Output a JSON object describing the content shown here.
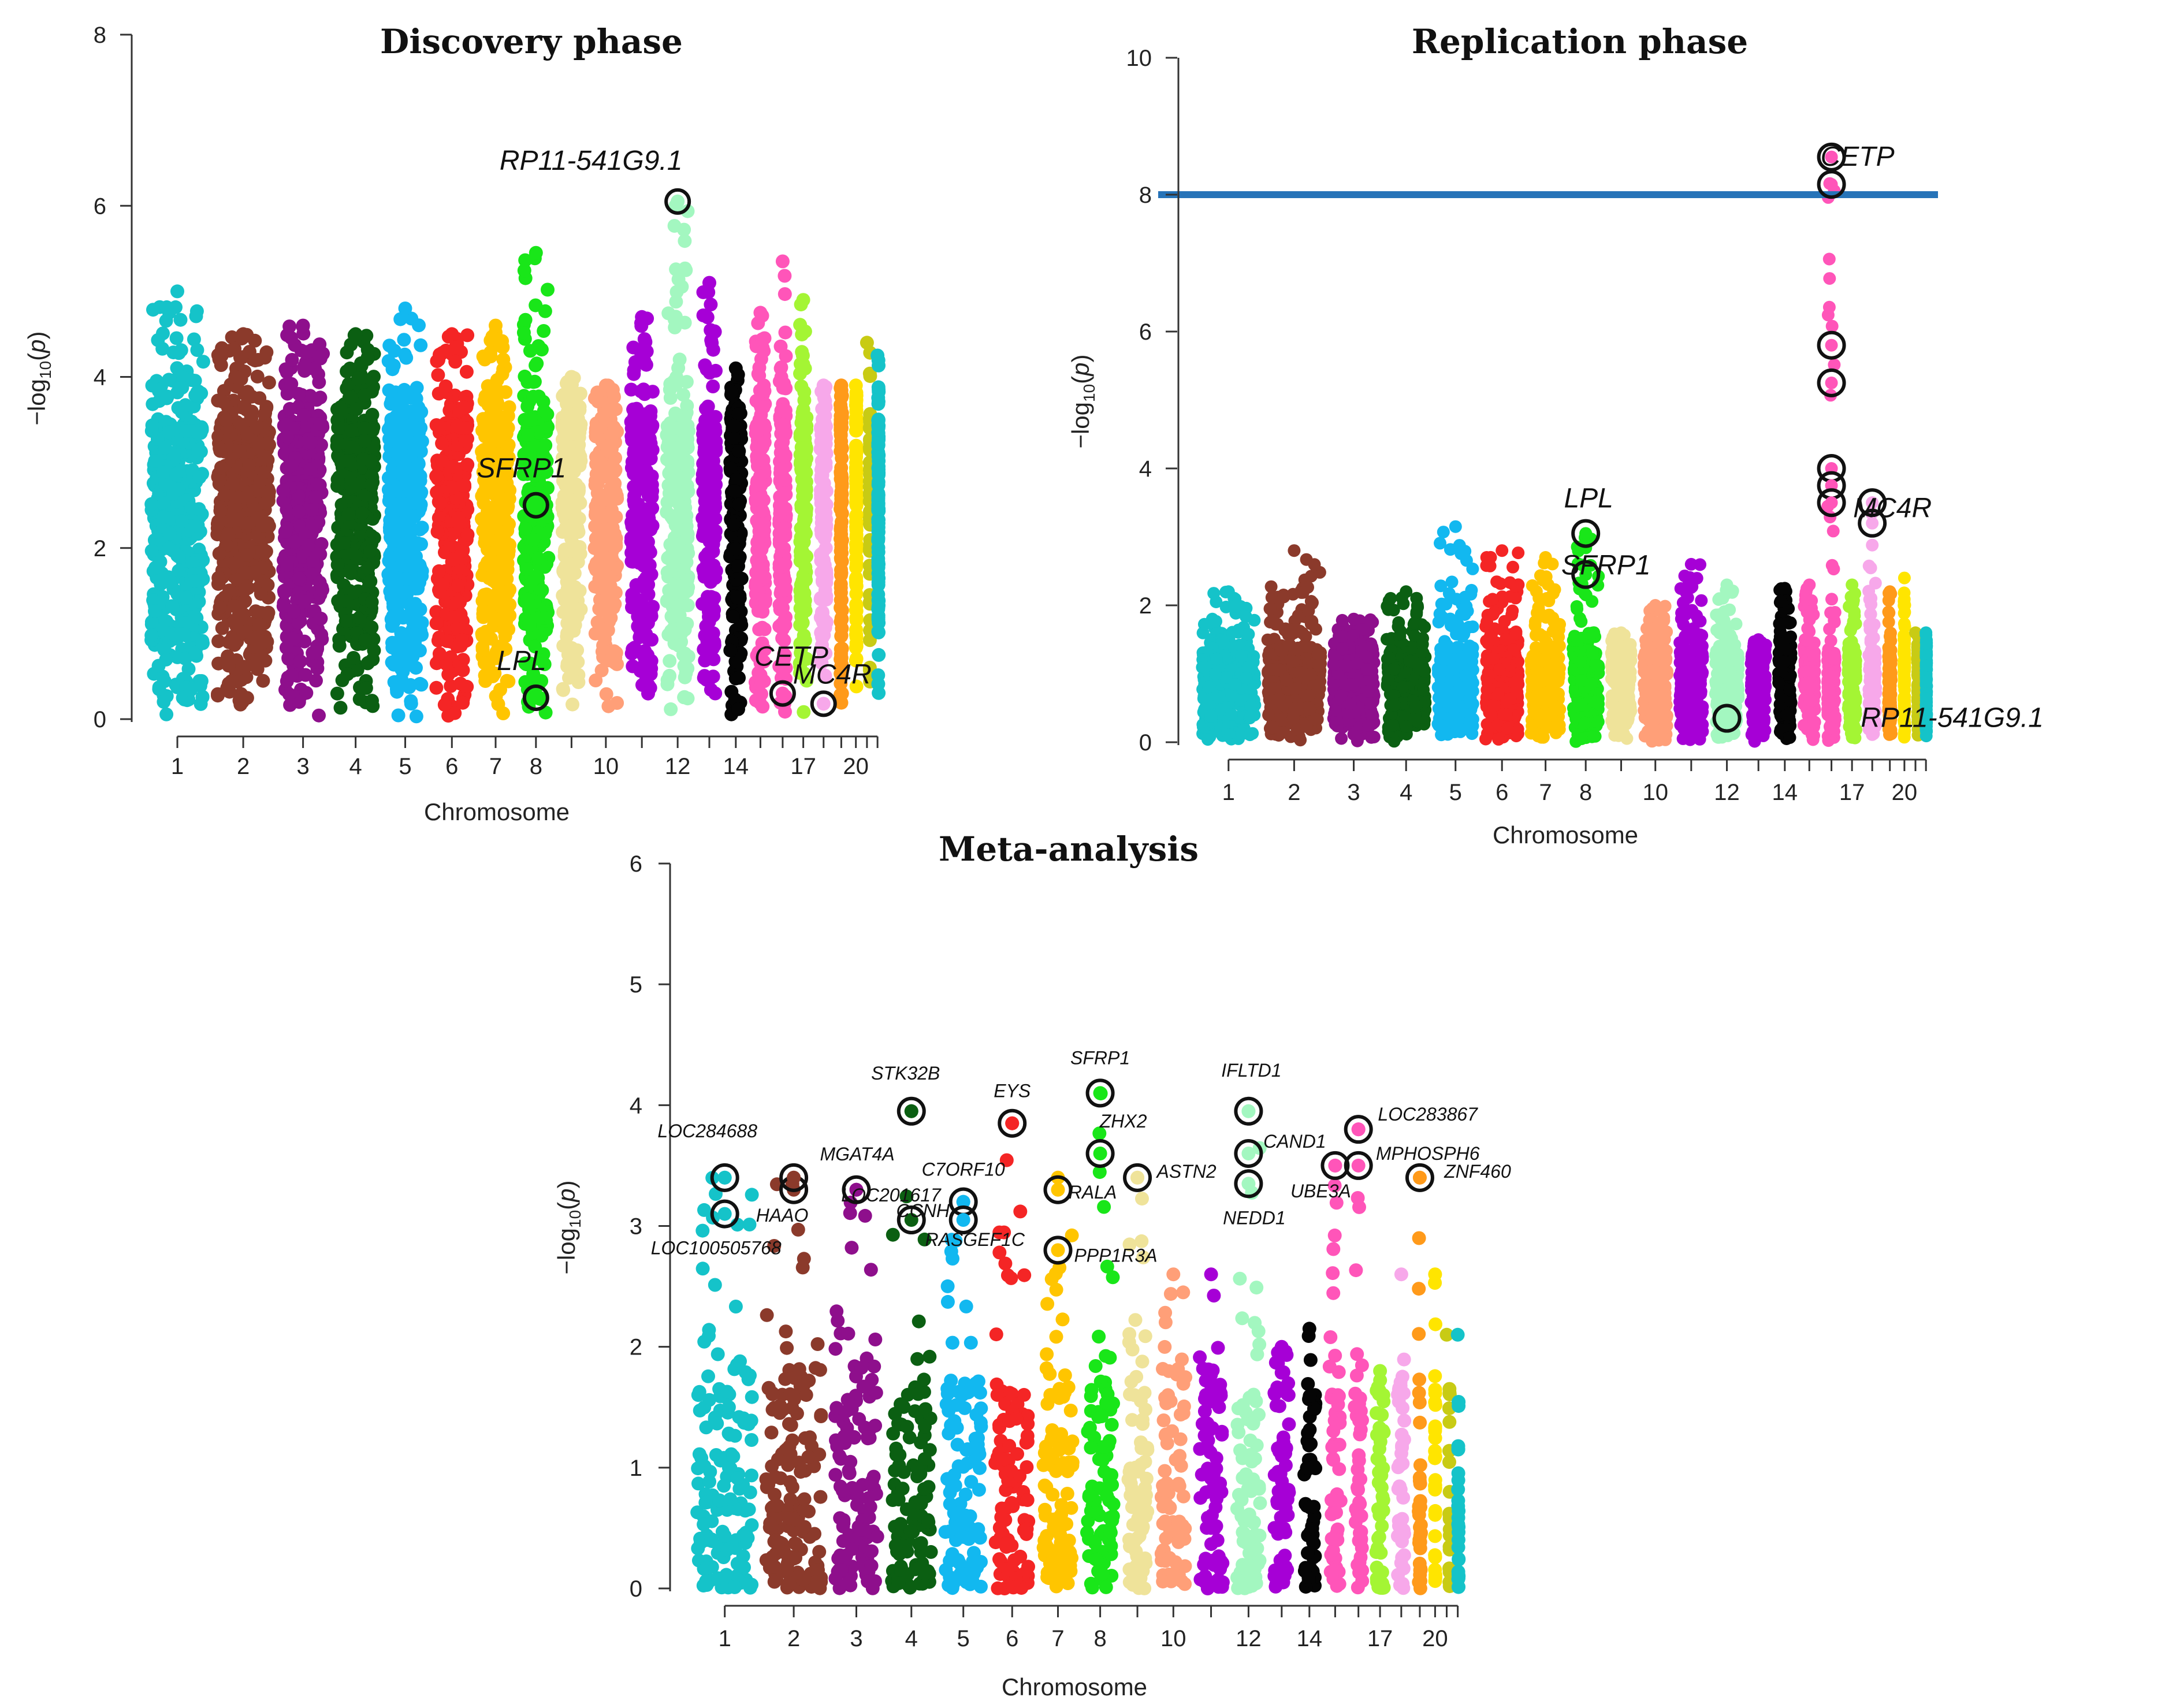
{
  "chart_data": [
    {
      "type": "scatter",
      "id": "discovery",
      "title": "Discovery phase",
      "xlabel": "Chromosome",
      "ylabel": "-log10(p)",
      "ylim": [
        0,
        8
      ],
      "yticks": [
        0,
        2,
        4,
        6,
        8
      ],
      "xtick_labels": [
        "1",
        "2",
        "3",
        "4",
        "5",
        "6",
        "7",
        "8",
        "10",
        "12",
        "14",
        "17",
        "20"
      ],
      "chromosomes": [
        {
          "chr": 1,
          "color": "#15c3c9",
          "top": 5.0
        },
        {
          "chr": 2,
          "color": "#8b3a2b",
          "top": 4.5
        },
        {
          "chr": 3,
          "color": "#8e0f8c",
          "top": 4.6
        },
        {
          "chr": 4,
          "color": "#0b5f12",
          "top": 4.5
        },
        {
          "chr": 5,
          "color": "#12b8f0",
          "top": 4.8
        },
        {
          "chr": 6,
          "color": "#f42525",
          "top": 4.5
        },
        {
          "chr": 7,
          "color": "#ffc500",
          "top": 4.6
        },
        {
          "chr": 8,
          "color": "#19e619",
          "top": 5.45
        },
        {
          "chr": 9,
          "color": "#efe39a",
          "top": 4.0
        },
        {
          "chr": 10,
          "color": "#ff9f78",
          "top": 3.9
        },
        {
          "chr": 11,
          "color": "#a600d6",
          "top": 4.7
        },
        {
          "chr": 12,
          "color": "#a3f7c0",
          "top": 6.05
        },
        {
          "chr": 13,
          "color": "#a600d6",
          "top": 5.1
        },
        {
          "chr": 14,
          "color": "#050505",
          "top": 4.1
        },
        {
          "chr": 15,
          "color": "#ff55b9",
          "top": 4.75
        },
        {
          "chr": 16,
          "color": "#ff55b9",
          "top": 5.35
        },
        {
          "chr": 17,
          "color": "#a4f534",
          "top": 4.9
        },
        {
          "chr": 18,
          "color": "#f7a8ea",
          "top": 3.9
        },
        {
          "chr": 19,
          "color": "#ff9a1a",
          "top": 3.9
        },
        {
          "chr": 20,
          "color": "#ffe500",
          "top": 3.9
        },
        {
          "chr": 21,
          "color": "#c8cb14",
          "top": 4.4
        },
        {
          "chr": 22,
          "color": "#15c3c9",
          "top": 4.25
        }
      ],
      "annotations": [
        {
          "gene": "RP11-541G9.1",
          "chr": 12,
          "y": 6.05
        },
        {
          "gene": "SFRP1",
          "chr": 8,
          "y": 2.5
        },
        {
          "gene": "LPL",
          "chr": 8,
          "y": 0.25
        },
        {
          "gene": "CETP",
          "chr": 16,
          "y": 0.3
        },
        {
          "gene": "MC4R",
          "chr": 18,
          "y": 0.18
        }
      ]
    },
    {
      "type": "scatter",
      "id": "replication",
      "title": "Replication phase",
      "xlabel": "Chromosome",
      "ylabel": "-log10(p)",
      "ylim": [
        0,
        10
      ],
      "yticks": [
        0,
        2,
        4,
        6,
        8,
        10
      ],
      "threshold": 8.0,
      "xtick_labels": [
        "1",
        "2",
        "3",
        "4",
        "5",
        "6",
        "7",
        "8",
        "10",
        "12",
        "14",
        "17",
        "20"
      ],
      "chromosomes": [
        {
          "chr": 1,
          "color": "#15c3c9",
          "top": 2.2
        },
        {
          "chr": 2,
          "color": "#8b3a2b",
          "top": 2.8
        },
        {
          "chr": 3,
          "color": "#8e0f8c",
          "top": 1.8
        },
        {
          "chr": 4,
          "color": "#0b5f12",
          "top": 2.2
        },
        {
          "chr": 5,
          "color": "#12b8f0",
          "top": 3.15
        },
        {
          "chr": 6,
          "color": "#f42525",
          "top": 2.8
        },
        {
          "chr": 7,
          "color": "#ffc500",
          "top": 2.7
        },
        {
          "chr": 8,
          "color": "#19e619",
          "top": 3.05
        },
        {
          "chr": 9,
          "color": "#efe39a",
          "top": 1.6
        },
        {
          "chr": 10,
          "color": "#ff9f78",
          "top": 2.0
        },
        {
          "chr": 11,
          "color": "#a600d6",
          "top": 2.6
        },
        {
          "chr": 12,
          "color": "#a3f7c0",
          "top": 2.3
        },
        {
          "chr": 13,
          "color": "#a600d6",
          "top": 1.5
        },
        {
          "chr": 14,
          "color": "#050505",
          "top": 2.25
        },
        {
          "chr": 15,
          "color": "#ff55b9",
          "top": 2.3
        },
        {
          "chr": 16,
          "color": "#ff55b9",
          "top": 8.55
        },
        {
          "chr": 17,
          "color": "#a4f534",
          "top": 2.3
        },
        {
          "chr": 18,
          "color": "#f7a8ea",
          "top": 3.5
        },
        {
          "chr": 19,
          "color": "#ff9a1a",
          "top": 2.2
        },
        {
          "chr": 20,
          "color": "#ffe500",
          "top": 2.4
        },
        {
          "chr": 21,
          "color": "#c8cb14",
          "top": 1.6
        },
        {
          "chr": 22,
          "color": "#15c3c9",
          "top": 1.6
        }
      ],
      "annotations": [
        {
          "gene": "CETP",
          "chr": 16,
          "y": 8.55
        },
        {
          "gene": "LPL",
          "chr": 8,
          "y": 3.05
        },
        {
          "gene": "SFRP1",
          "chr": 8,
          "y": 2.45
        },
        {
          "gene": "MC4R",
          "chr": 18,
          "y": 3.5
        },
        {
          "gene": "RP11-541G9.1",
          "chr": 12,
          "y": 0.35
        }
      ],
      "circled_points": [
        {
          "chr": 16,
          "y": 8.55
        },
        {
          "chr": 16,
          "y": 8.15
        },
        {
          "chr": 16,
          "y": 5.8
        },
        {
          "chr": 16,
          "y": 5.25
        },
        {
          "chr": 16,
          "y": 4.0
        },
        {
          "chr": 16,
          "y": 3.75
        },
        {
          "chr": 16,
          "y": 3.5
        },
        {
          "chr": 18,
          "y": 3.5
        },
        {
          "chr": 18,
          "y": 3.2
        },
        {
          "chr": 8,
          "y": 3.05
        },
        {
          "chr": 8,
          "y": 2.45
        },
        {
          "chr": 12,
          "y": 0.35
        }
      ]
    },
    {
      "type": "scatter",
      "id": "meta",
      "title": "Meta-analysis",
      "xlabel": "Chromosome",
      "ylabel": "-log10(p)",
      "ylim": [
        0,
        6
      ],
      "yticks": [
        0,
        1,
        2,
        3,
        4,
        5,
        6
      ],
      "xtick_labels": [
        "1",
        "2",
        "3",
        "4",
        "5",
        "6",
        "7",
        "8",
        "10",
        "12",
        "14",
        "17",
        "20"
      ],
      "chromosomes": [
        {
          "chr": 1,
          "color": "#15c3c9",
          "top": 3.4
        },
        {
          "chr": 2,
          "color": "#8b3a2b",
          "top": 3.4
        },
        {
          "chr": 3,
          "color": "#8e0f8c",
          "top": 3.3
        },
        {
          "chr": 4,
          "color": "#0b5f12",
          "top": 3.95
        },
        {
          "chr": 5,
          "color": "#12b8f0",
          "top": 3.2
        },
        {
          "chr": 6,
          "color": "#f42525",
          "top": 3.85
        },
        {
          "chr": 7,
          "color": "#ffc500",
          "top": 3.4
        },
        {
          "chr": 8,
          "color": "#19e619",
          "top": 4.1
        },
        {
          "chr": 9,
          "color": "#efe39a",
          "top": 3.4
        },
        {
          "chr": 10,
          "color": "#ff9f78",
          "top": 2.6
        },
        {
          "chr": 11,
          "color": "#a600d6",
          "top": 2.6
        },
        {
          "chr": 12,
          "color": "#a3f7c0",
          "top": 3.95
        },
        {
          "chr": 13,
          "color": "#a600d6",
          "top": 2.0
        },
        {
          "chr": 14,
          "color": "#050505",
          "top": 2.15
        },
        {
          "chr": 15,
          "color": "#ff55b9",
          "top": 3.5
        },
        {
          "chr": 16,
          "color": "#ff55b9",
          "top": 3.8
        },
        {
          "chr": 17,
          "color": "#a4f534",
          "top": 1.8
        },
        {
          "chr": 18,
          "color": "#f7a8ea",
          "top": 2.6
        },
        {
          "chr": 19,
          "color": "#ff9a1a",
          "top": 3.4
        },
        {
          "chr": 20,
          "color": "#ffe500",
          "top": 2.6
        },
        {
          "chr": 21,
          "color": "#c8cb14",
          "top": 2.1
        },
        {
          "chr": 22,
          "color": "#15c3c9",
          "top": 2.1
        }
      ],
      "annotations": [
        {
          "gene": "LOC284688",
          "chr": 1,
          "y": 3.4
        },
        {
          "gene": "HAAO",
          "chr": 2,
          "y": 3.3
        },
        {
          "gene": "LOC100505768",
          "chr": 1,
          "y": 3.1
        },
        {
          "gene": "MGAT4A",
          "chr": 2,
          "y": 3.4
        },
        {
          "gene": "STK32B",
          "chr": 4,
          "y": 3.95
        },
        {
          "gene": "LOC201617",
          "chr": 3,
          "y": 3.3
        },
        {
          "gene": "CCNH",
          "chr": 4,
          "y": 3.05
        },
        {
          "gene": "C7ORF10",
          "chr": 5,
          "y": 3.2
        },
        {
          "gene": "RASGEF1C",
          "chr": 5,
          "y": 3.05
        },
        {
          "gene": "EYS",
          "chr": 6,
          "y": 3.85
        },
        {
          "gene": "RALA",
          "chr": 7,
          "y": 3.3
        },
        {
          "gene": "PPP1R3A",
          "chr": 7,
          "y": 2.8
        },
        {
          "gene": "SFRP1",
          "chr": 8,
          "y": 4.1
        },
        {
          "gene": "ZHX2",
          "chr": 8,
          "y": 3.6
        },
        {
          "gene": "ASTN2",
          "chr": 9,
          "y": 3.4
        },
        {
          "gene": "IFLTD1",
          "chr": 12,
          "y": 3.95
        },
        {
          "gene": "CAND1",
          "chr": 12,
          "y": 3.6
        },
        {
          "gene": "NEDD1",
          "chr": 12,
          "y": 3.35
        },
        {
          "gene": "UBE3A",
          "chr": 15,
          "y": 3.5
        },
        {
          "gene": "LOC283867",
          "chr": 16,
          "y": 3.8
        },
        {
          "gene": "MPHOSPH6",
          "chr": 16,
          "y": 3.5
        },
        {
          "gene": "ZNF460",
          "chr": 19,
          "y": 3.4
        }
      ]
    }
  ]
}
